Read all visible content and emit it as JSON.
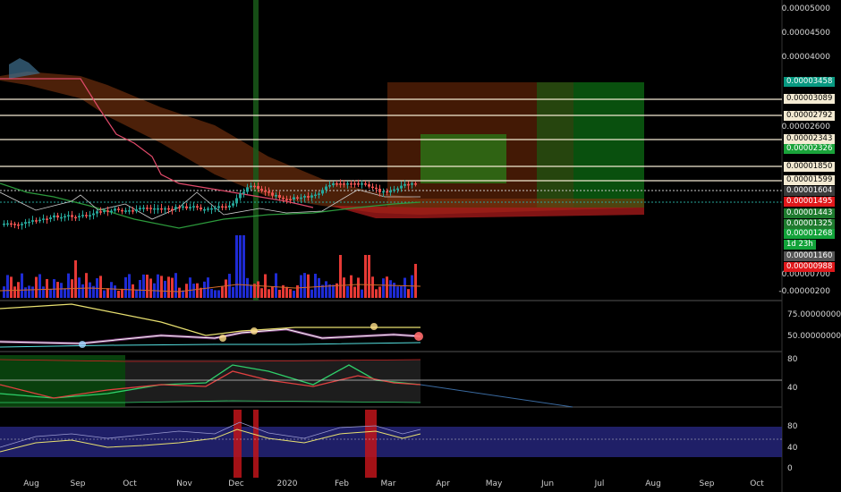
{
  "price_axis": [
    "0.00005000",
    "0.00004500",
    "0.00004000",
    "0.00002600",
    "0.00000700",
    "-0.00000200"
  ],
  "price_tags": [
    {
      "text": "0.00003458",
      "bg": "#089981",
      "fg": "#ffffff"
    },
    {
      "text": "0.00003089",
      "bg": "#f3ead2",
      "fg": "#000000"
    },
    {
      "text": "0.00002792",
      "bg": "#f3ead2",
      "fg": "#000000"
    },
    {
      "text": "0.00002343",
      "bg": "#f3ead2",
      "fg": "#000000"
    },
    {
      "text": "0.00002326",
      "bg": "#1aa33a",
      "fg": "#ffffff"
    },
    {
      "text": "0.00001850",
      "bg": "#f3ead2",
      "fg": "#000000"
    },
    {
      "text": "0.00001599",
      "bg": "#f3ead2",
      "fg": "#000000"
    },
    {
      "text": "0.00001604",
      "bg": "#3b3b3b",
      "fg": "#ffffff"
    },
    {
      "text": "0.00001495",
      "bg": "#e0181b",
      "fg": "#ffffff"
    },
    {
      "text": "0.00001443",
      "bg": "#1e7b2e",
      "fg": "#ffffff"
    },
    {
      "text": "0.00001325",
      "bg": "#1e7b2e",
      "fg": "#ffffff"
    },
    {
      "text": "0.00001268",
      "bg": "#12a33a",
      "fg": "#ffffff"
    },
    {
      "text": "1d 23h",
      "bg": "#12a33a",
      "fg": "#ffffff"
    },
    {
      "text": "0.00001160",
      "bg": "#555555",
      "fg": "#ffffff"
    },
    {
      "text": "0.00000988",
      "bg": "#e0181b",
      "fg": "#ffffff"
    }
  ],
  "rsi_axis": [
    "75.00000000",
    "50.00000000"
  ],
  "osc_axis": [
    "80",
    "40"
  ],
  "stoch_axis": [
    "80",
    "40",
    "0"
  ],
  "x_axis": [
    "Aug",
    "Sep",
    "Oct",
    "Nov",
    "Dec",
    "2020",
    "Feb",
    "Mar",
    "Apr",
    "May",
    "Jun",
    "Jul",
    "Aug",
    "Sep",
    "Oct"
  ],
  "colors": {
    "background": "#000000",
    "up": "#26a69a",
    "down": "#ef5350",
    "volume_up": "#1e2bd4",
    "volume_down": "#e53935",
    "cloud": "#8a3a10",
    "target_green": "#1e8b1e"
  }
}
